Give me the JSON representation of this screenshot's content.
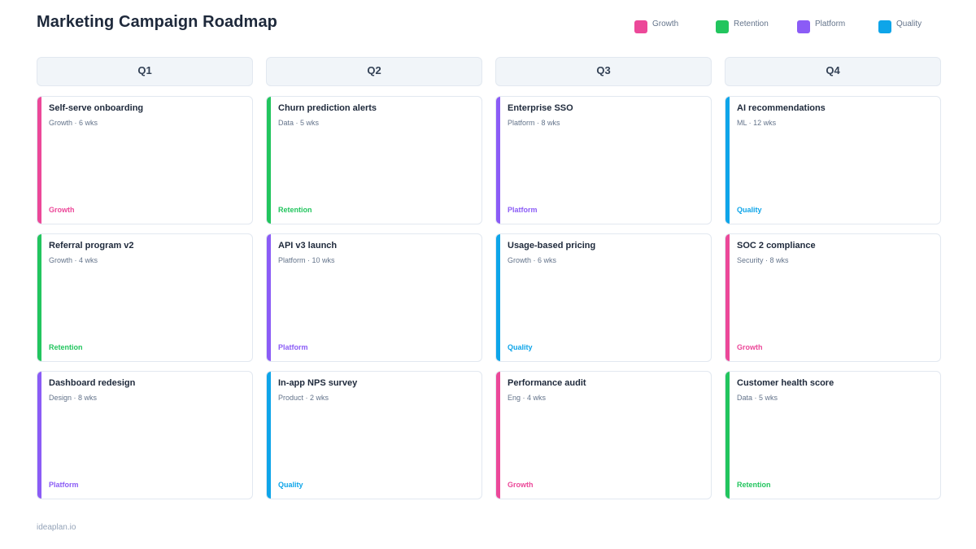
{
  "title": "Marketing Campaign Roadmap",
  "colors": {
    "Growth": "#ec4899",
    "Retention": "#22c55e",
    "Platform": "#8b5cf6",
    "Quality": "#0ea5e9"
  },
  "legend": [
    {
      "label": "Growth",
      "color": "#ec4899"
    },
    {
      "label": "Retention",
      "color": "#22c55e"
    },
    {
      "label": "Platform",
      "color": "#8b5cf6"
    },
    {
      "label": "Quality",
      "color": "#0ea5e9"
    }
  ],
  "columns": [
    {
      "label": "Q1",
      "cards": [
        {
          "title": "Self-serve onboarding",
          "meta": "Growth · 6 wks",
          "tag": "Growth"
        },
        {
          "title": "Referral program v2",
          "meta": "Growth · 4 wks",
          "tag": "Retention"
        },
        {
          "title": "Dashboard redesign",
          "meta": "Design · 8 wks",
          "tag": "Platform"
        }
      ]
    },
    {
      "label": "Q2",
      "cards": [
        {
          "title": "Churn prediction alerts",
          "meta": "Data · 5 wks",
          "tag": "Retention"
        },
        {
          "title": "API v3 launch",
          "meta": "Platform · 10 wks",
          "tag": "Platform"
        },
        {
          "title": "In-app NPS survey",
          "meta": "Product · 2 wks",
          "tag": "Quality"
        }
      ]
    },
    {
      "label": "Q3",
      "cards": [
        {
          "title": "Enterprise SSO",
          "meta": "Platform · 8 wks",
          "tag": "Platform"
        },
        {
          "title": "Usage-based pricing",
          "meta": "Growth · 6 wks",
          "tag": "Quality"
        },
        {
          "title": "Performance audit",
          "meta": "Eng · 4 wks",
          "tag": "Growth"
        }
      ]
    },
    {
      "label": "Q4",
      "cards": [
        {
          "title": "AI recommendations",
          "meta": "ML · 12 wks",
          "tag": "Quality"
        },
        {
          "title": "SOC 2 compliance",
          "meta": "Security · 8 wks",
          "tag": "Growth"
        },
        {
          "title": "Customer health score",
          "meta": "Data · 5 wks",
          "tag": "Retention"
        }
      ]
    }
  ],
  "footer": "ideaplan.io"
}
